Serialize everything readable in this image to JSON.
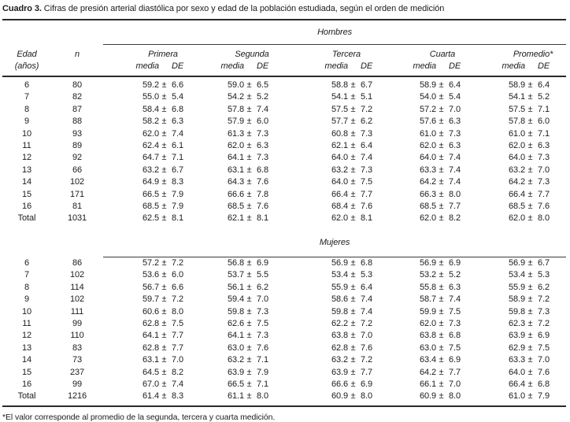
{
  "title": {
    "label": "Cuadro 3.",
    "text": " Cifras de presión arterial diastólica por sexo y edad de la población estudiada, según el orden de medición"
  },
  "footnote": "*El valor corresponde al promedio de la segunda, tercera y cuarta medición.",
  "chart_data": {
    "type": "table",
    "title": "Cuadro 3. Cifras de presión arterial diastólica por sexo y edad de la población estudiada, según el orden de medición",
    "header": {
      "edad_line1": "Edad",
      "edad_line2": "(años)",
      "n": "n",
      "groups": [
        "Primera",
        "Segunda",
        "Tercera",
        "Cuarta",
        "Promedio*"
      ],
      "sub_media": "media",
      "sub_de": "DE",
      "plus_minus": "±"
    },
    "columns": [
      "Edad (años)",
      "n",
      "Primera media",
      "Primera DE",
      "Segunda media",
      "Segunda DE",
      "Tercera media",
      "Tercera DE",
      "Cuarta media",
      "Cuarta DE",
      "Promedio media",
      "Promedio DE"
    ],
    "sections": [
      {
        "label": "Hombres",
        "rows": [
          [
            "6",
            "80",
            "59.2",
            "6.6",
            "59.0",
            "6.5",
            "58.8",
            "6.7",
            "58.9",
            "6.4",
            "58.9",
            "6.4"
          ],
          [
            "7",
            "82",
            "55.0",
            "5.4",
            "54.2",
            "5.2",
            "54.1",
            "5.1",
            "54.0",
            "5.4",
            "54.1",
            "5.2"
          ],
          [
            "8",
            "87",
            "58.4",
            "6.8",
            "57.8",
            "7.4",
            "57.5",
            "7.2",
            "57.2",
            "7.0",
            "57.5",
            "7.1"
          ],
          [
            "9",
            "88",
            "58.2",
            "6.3",
            "57.9",
            "6.0",
            "57.7",
            "6.2",
            "57.6",
            "6.3",
            "57.8",
            "6.0"
          ],
          [
            "10",
            "93",
            "62.0",
            "7.4",
            "61.3",
            "7.3",
            "60.8",
            "7.3",
            "61.0",
            "7.3",
            "61.0",
            "7.1"
          ],
          [
            "11",
            "89",
            "62.4",
            "6.1",
            "62.0",
            "6.3",
            "62.1",
            "6.4",
            "62.0",
            "6.3",
            "62.0",
            "6.3"
          ],
          [
            "12",
            "92",
            "64.7",
            "7.1",
            "64.1",
            "7.3",
            "64.0",
            "7.4",
            "64.0",
            "7.4",
            "64.0",
            "7.3"
          ],
          [
            "13",
            "66",
            "63.2",
            "6.7",
            "63.1",
            "6.8",
            "63.2",
            "7.3",
            "63.3",
            "7.4",
            "63.2",
            "7.0"
          ],
          [
            "14",
            "102",
            "64.9",
            "8.3",
            "64.3",
            "7.6",
            "64.0",
            "7.5",
            "64.2",
            "7.4",
            "64.2",
            "7.3"
          ],
          [
            "15",
            "171",
            "66.5",
            "7.9",
            "66.6",
            "7.8",
            "66.4",
            "7.7",
            "66.3",
            "8.0",
            "66.4",
            "7.7"
          ],
          [
            "16",
            "81",
            "68.5",
            "7.9",
            "68.5",
            "7.6",
            "68.4",
            "7.6",
            "68.5",
            "7.7",
            "68.5",
            "7.6"
          ],
          [
            "Total",
            "1031",
            "62.5",
            "8.1",
            "62.1",
            "8.1",
            "62.0",
            "8.1",
            "62.0",
            "8.2",
            "62.0",
            "8.0"
          ]
        ]
      },
      {
        "label": "Mujeres",
        "rows": [
          [
            "6",
            "86",
            "57.2",
            "7.2",
            "56.8",
            "6.9",
            "56.9",
            "6.8",
            "56.9",
            "6.9",
            "56.9",
            "6.7"
          ],
          [
            "7",
            "102",
            "53.6",
            "6.0",
            "53.7",
            "5.5",
            "53.4",
            "5.3",
            "53.2",
            "5.2",
            "53.4",
            "5.3"
          ],
          [
            "8",
            "114",
            "56.7",
            "6.6",
            "56.1",
            "6.2",
            "55.9",
            "6.4",
            "55.8",
            "6.3",
            "55.9",
            "6.2"
          ],
          [
            "9",
            "102",
            "59.7",
            "7.2",
            "59.4",
            "7.0",
            "58.6",
            "7.4",
            "58.7",
            "7.4",
            "58.9",
            "7.2"
          ],
          [
            "10",
            "111",
            "60.6",
            "8.0",
            "59.8",
            "7.3",
            "59.8",
            "7.4",
            "59.9",
            "7.5",
            "59.8",
            "7.3"
          ],
          [
            "11",
            "99",
            "62.8",
            "7.5",
            "62.6",
            "7.5",
            "62.2",
            "7.2",
            "62.0",
            "7.3",
            "62.3",
            "7.2"
          ],
          [
            "12",
            "110",
            "64.1",
            "7.7",
            "64.1",
            "7.3",
            "63.8",
            "7.0",
            "63.8",
            "6.8",
            "63.9",
            "6.9"
          ],
          [
            "13",
            "83",
            "62.8",
            "7.7",
            "63.0",
            "7.6",
            "62.8",
            "7.6",
            "63.0",
            "7.5",
            "62.9",
            "7.5"
          ],
          [
            "14",
            "73",
            "63.1",
            "7.0",
            "63.2",
            "7.1",
            "63.2",
            "7.2",
            "63.4",
            "6.9",
            "63.3",
            "7.0"
          ],
          [
            "15",
            "237",
            "64.5",
            "8.2",
            "63.9",
            "7.9",
            "63.9",
            "7.7",
            "64.2",
            "7.7",
            "64.0",
            "7.6"
          ],
          [
            "16",
            "99",
            "67.0",
            "7.4",
            "66.5",
            "7.1",
            "66.6",
            "6.9",
            "66.1",
            "7.0",
            "66.4",
            "6.8"
          ],
          [
            "Total",
            "1216",
            "61.4",
            "8.3",
            "61.1",
            "8.0",
            "60.9",
            "8.0",
            "60.9",
            "8.0",
            "61.0",
            "7.9"
          ]
        ]
      }
    ]
  }
}
